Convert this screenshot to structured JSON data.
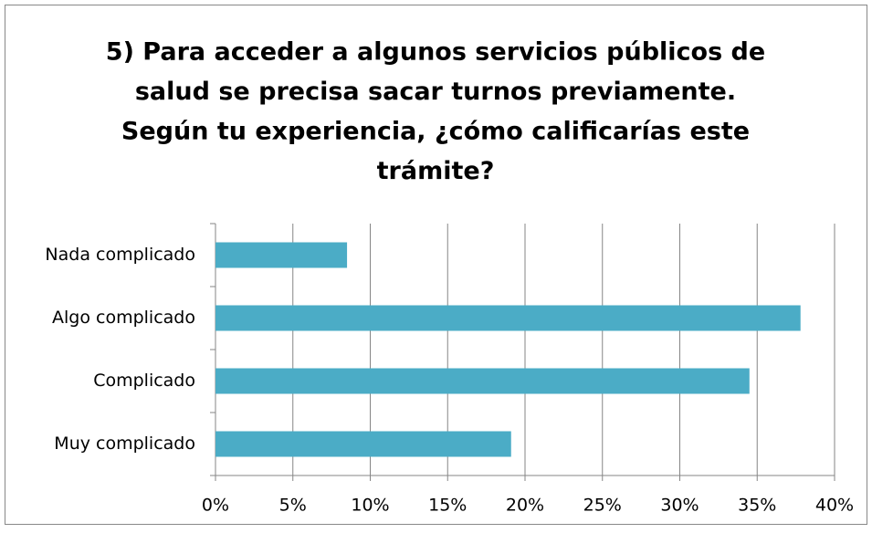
{
  "chart_data": {
    "type": "barh",
    "title": [
      "5) Para acceder a algunos servicios públicos de",
      "salud se precisa sacar turnos previamente.",
      "Según tu experiencia, ¿cómo calificarías este",
      "trámite?"
    ],
    "categories": [
      "Nada complicado",
      "Algo complicado",
      "Complicado",
      "Muy complicado"
    ],
    "values": [
      8.5,
      37.8,
      34.5,
      19.1
    ],
    "color": "#4bacc6",
    "xlim": [
      0,
      40
    ],
    "xticks": [
      {
        "value": 0,
        "label": "0%"
      },
      {
        "value": 5,
        "label": "5%"
      },
      {
        "value": 10,
        "label": "10%"
      },
      {
        "value": 15,
        "label": "15%"
      },
      {
        "value": 20,
        "label": "20%"
      },
      {
        "value": 25,
        "label": "25%"
      },
      {
        "value": 30,
        "label": "30%"
      },
      {
        "value": 35,
        "label": "35%"
      },
      {
        "value": 40,
        "label": "40%"
      }
    ],
    "grid": true
  }
}
